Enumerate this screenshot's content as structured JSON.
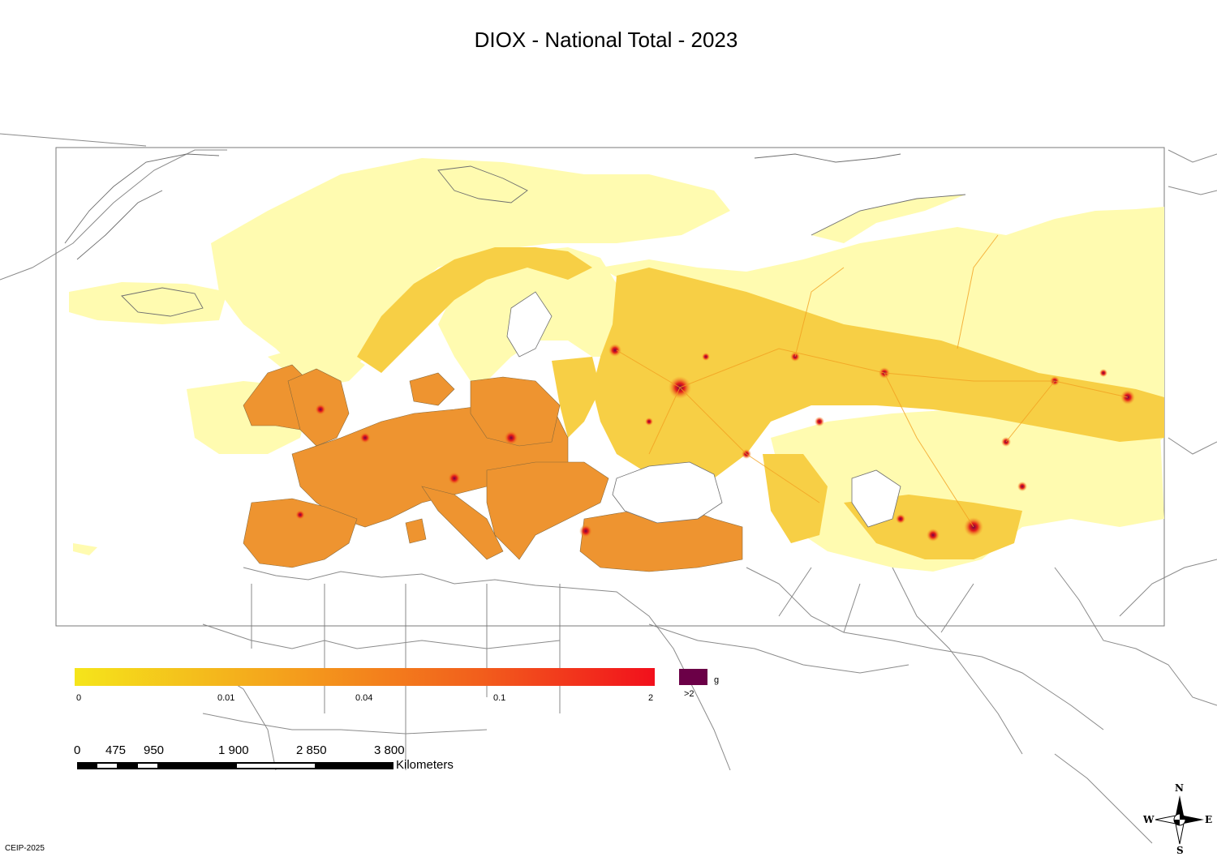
{
  "title": "DIOX - National Total - 2023",
  "legend": {
    "unit": "g",
    "ticks": [
      "0",
      "0.01",
      "0.04",
      "0.1",
      "2"
    ],
    "over_label": ">2",
    "gradient_colors": [
      "#f5e51b",
      "#f4a31c",
      "#f25e1c",
      "#f2101c"
    ],
    "over_color": "#6b0047"
  },
  "scale_bar": {
    "labels": [
      "0",
      "475",
      "950",
      "1 900",
      "2 850",
      "3 800"
    ],
    "unit": "Kilometers"
  },
  "compass": {
    "north": "N",
    "south": "S",
    "east": "E",
    "west": "W"
  },
  "credit": "CEIP-2025",
  "colors": {
    "low": "#fffbb0",
    "mid": "#f5c242",
    "high": "#ef8a25",
    "hotspot": "#e53020",
    "land_outline": "#6e6e6e"
  }
}
